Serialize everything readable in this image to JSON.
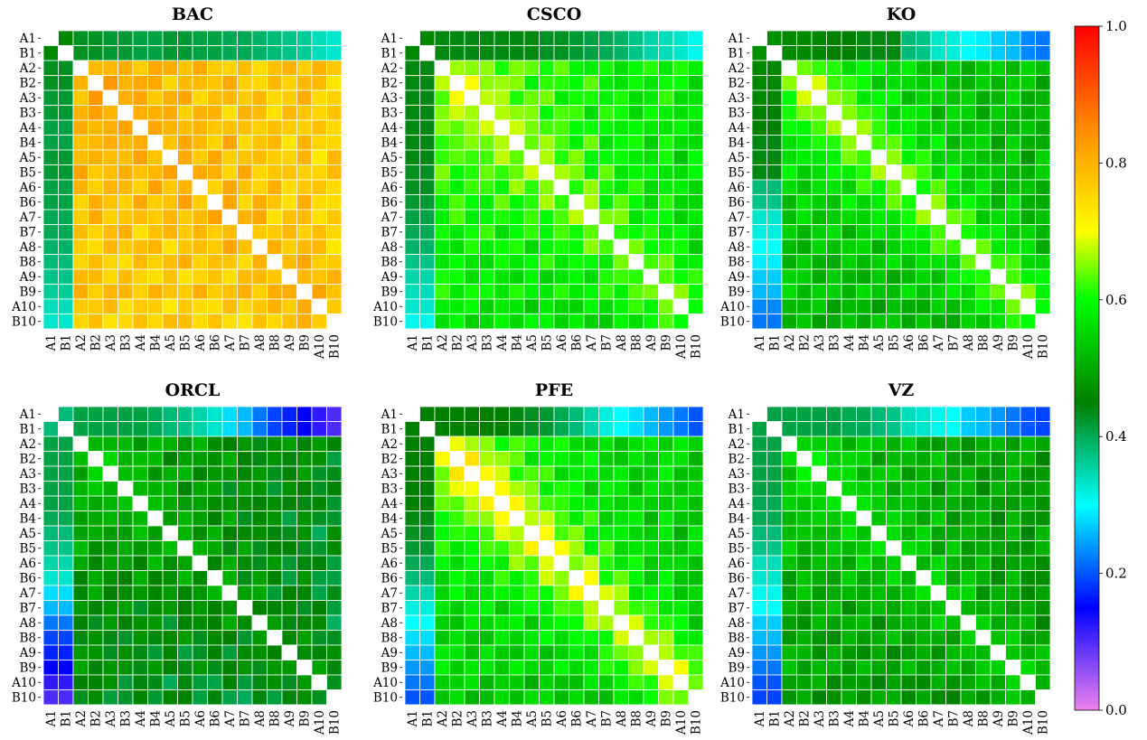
{
  "chart_data": {
    "type": "heatmap",
    "labels": [
      "A1",
      "B1",
      "A2",
      "B2",
      "A3",
      "B3",
      "A4",
      "B4",
      "A5",
      "B5",
      "A6",
      "B6",
      "A7",
      "B7",
      "A8",
      "B8",
      "A9",
      "B9",
      "A10",
      "B10"
    ],
    "diagonal": "blank",
    "colorbar": {
      "min": 0.0,
      "max": 1.0,
      "ticks": [
        "0.0",
        "0.2",
        "0.4",
        "0.6",
        "0.8",
        "1.0"
      ],
      "colormap": "gist_rainbow_r",
      "stops": [
        {
          "v": 0.0,
          "color": "#ee82ee"
        },
        {
          "v": 0.15,
          "color": "#0000ff"
        },
        {
          "v": 0.3,
          "color": "#00ffff"
        },
        {
          "v": 0.45,
          "color": "#008000"
        },
        {
          "v": 0.6,
          "color": "#00ff00"
        },
        {
          "v": 0.7,
          "color": "#ffff00"
        },
        {
          "v": 0.85,
          "color": "#ff8c00"
        },
        {
          "v": 1.0,
          "color": "#ff0000"
        }
      ]
    },
    "panels": [
      {
        "title": "BAC",
        "first_pair": [
          0.46,
          0.44,
          0.43,
          0.43,
          0.42,
          0.42,
          0.41,
          0.41,
          0.42,
          0.42,
          0.41,
          0.41,
          0.4,
          0.4,
          0.39,
          0.38,
          0.37,
          0.36,
          0.34,
          0.33
        ],
        "block_base": 0.79,
        "diag_gain": 0.04,
        "far_drop": 0.08
      },
      {
        "title": "CSCO",
        "first_pair": [
          0.46,
          0.44,
          0.44,
          0.44,
          0.44,
          0.44,
          0.44,
          0.44,
          0.44,
          0.43,
          0.43,
          0.42,
          0.41,
          0.4,
          0.39,
          0.37,
          0.35,
          0.34,
          0.33,
          0.31
        ],
        "block_base": 0.62,
        "diag_gain": 0.1,
        "far_drop": 0.16
      },
      {
        "title": "KO",
        "first_pair": [
          0.47,
          0.45,
          0.46,
          0.46,
          0.46,
          0.45,
          0.45,
          0.44,
          0.44,
          0.44,
          0.38,
          0.37,
          0.33,
          0.32,
          0.3,
          0.29,
          0.27,
          0.26,
          0.23,
          0.22
        ],
        "block_base": 0.55,
        "diag_gain": 0.17,
        "far_drop": 0.12
      },
      {
        "title": "ORCL",
        "first_pair": [
          0.38,
          0.36,
          0.41,
          0.41,
          0.41,
          0.41,
          0.41,
          0.4,
          0.38,
          0.37,
          0.35,
          0.33,
          0.28,
          0.26,
          0.22,
          0.19,
          0.17,
          0.15,
          0.12,
          0.1
        ],
        "block_base": 0.5,
        "diag_gain": 0.06,
        "far_drop": 0.2
      },
      {
        "title": "PFE",
        "first_pair": [
          0.45,
          0.44,
          0.45,
          0.45,
          0.45,
          0.45,
          0.45,
          0.44,
          0.43,
          0.42,
          0.4,
          0.38,
          0.35,
          0.32,
          0.3,
          0.28,
          0.26,
          0.24,
          0.22,
          0.2
        ],
        "block_base": 0.58,
        "diag_gain": 0.2,
        "far_drop": 0.14
      },
      {
        "title": "VZ",
        "first_pair": [
          0.41,
          0.4,
          0.41,
          0.41,
          0.41,
          0.41,
          0.4,
          0.4,
          0.38,
          0.37,
          0.34,
          0.33,
          0.31,
          0.3,
          0.27,
          0.26,
          0.24,
          0.22,
          0.2,
          0.19
        ],
        "block_base": 0.52,
        "diag_gain": 0.08,
        "far_drop": 0.12
      }
    ]
  }
}
